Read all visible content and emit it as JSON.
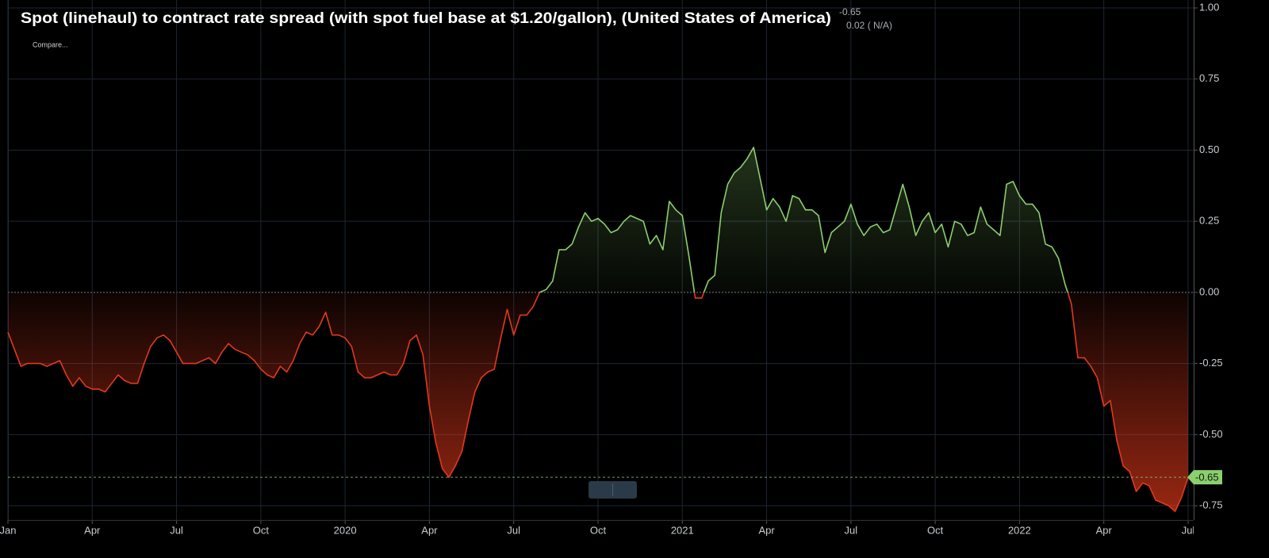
{
  "chart_data": {
    "type": "line",
    "title": "Spot (linehaul) to contract rate spread (with spot fuel base at $1.20/gallon), (United States of America)",
    "change_label": "0.02 ( N/A)",
    "compare_label": "Compare...",
    "positive_color": "#8ccf6e",
    "negative_color": "#e2391c",
    "categories": [
      "Jan",
      null,
      null,
      null,
      null,
      null,
      null,
      null,
      null,
      null,
      null,
      null,
      null,
      "Apr",
      null,
      null,
      null,
      null,
      null,
      null,
      null,
      null,
      null,
      null,
      null,
      null,
      "Jul",
      null,
      null,
      null,
      null,
      null,
      null,
      null,
      null,
      null,
      null,
      null,
      null,
      "Oct",
      null,
      null,
      null,
      null,
      null,
      null,
      null,
      null,
      null,
      null,
      null,
      null,
      "2020",
      null,
      null,
      null,
      null,
      null,
      null,
      null,
      null,
      null,
      null,
      null,
      null,
      "Apr",
      null,
      null,
      null,
      null,
      null,
      null,
      null,
      null,
      null,
      null,
      null,
      null,
      "Jul",
      null,
      null,
      null,
      null,
      null,
      null,
      null,
      null,
      null,
      null,
      null,
      null,
      "Oct",
      null,
      null,
      null,
      null,
      null,
      null,
      null,
      null,
      null,
      null,
      null,
      null,
      "2021",
      null,
      null,
      null,
      null,
      null,
      null,
      null,
      null,
      null,
      null,
      null,
      null,
      "Apr",
      null,
      null,
      null,
      null,
      null,
      null,
      null,
      null,
      null,
      null,
      null,
      null,
      "Jul",
      null,
      null,
      null,
      null,
      null,
      null,
      null,
      null,
      null,
      null,
      null,
      null,
      "Oct",
      null,
      null,
      null,
      null,
      null,
      null,
      null,
      null,
      null,
      null,
      null,
      null,
      "2022",
      null,
      null,
      null,
      null,
      null,
      null,
      null,
      null,
      null,
      null,
      null,
      null,
      "Apr",
      null,
      null,
      null,
      null,
      null,
      null,
      null,
      null,
      null,
      null,
      null,
      null,
      "Jul"
    ],
    "values": [
      -0.14,
      -0.2,
      -0.26,
      -0.25,
      -0.25,
      -0.25,
      -0.26,
      -0.25,
      -0.24,
      -0.29,
      -0.33,
      -0.3,
      -0.33,
      -0.34,
      -0.34,
      -0.35,
      -0.32,
      -0.29,
      -0.31,
      -0.32,
      -0.32,
      -0.25,
      -0.19,
      -0.16,
      -0.15,
      -0.17,
      -0.21,
      -0.25,
      -0.25,
      -0.25,
      -0.24,
      -0.23,
      -0.25,
      -0.21,
      -0.18,
      -0.2,
      -0.21,
      -0.22,
      -0.24,
      -0.27,
      -0.29,
      -0.3,
      -0.26,
      -0.28,
      -0.24,
      -0.18,
      -0.14,
      -0.15,
      -0.12,
      -0.07,
      -0.15,
      -0.15,
      -0.16,
      -0.19,
      -0.28,
      -0.3,
      -0.3,
      -0.29,
      -0.28,
      -0.29,
      -0.29,
      -0.25,
      -0.17,
      -0.15,
      -0.22,
      -0.4,
      -0.53,
      -0.62,
      -0.65,
      -0.61,
      -0.56,
      -0.45,
      -0.35,
      -0.3,
      -0.28,
      -0.27,
      -0.16,
      -0.06,
      -0.15,
      -0.08,
      -0.08,
      -0.05,
      0.0,
      0.01,
      0.04,
      0.15,
      0.15,
      0.17,
      0.23,
      0.28,
      0.25,
      0.26,
      0.24,
      0.21,
      0.22,
      0.25,
      0.27,
      0.26,
      0.25,
      0.17,
      0.2,
      0.15,
      0.32,
      0.29,
      0.27,
      0.13,
      -0.02,
      -0.02,
      0.04,
      0.06,
      0.28,
      0.38,
      0.42,
      0.44,
      0.47,
      0.51,
      0.4,
      0.29,
      0.33,
      0.3,
      0.25,
      0.34,
      0.33,
      0.29,
      0.29,
      0.27,
      0.14,
      0.21,
      0.23,
      0.25,
      0.31,
      0.24,
      0.2,
      0.23,
      0.24,
      0.21,
      0.22,
      0.3,
      0.38,
      0.3,
      0.2,
      0.25,
      0.28,
      0.21,
      0.24,
      0.16,
      0.25,
      0.24,
      0.2,
      0.21,
      0.3,
      0.24,
      0.22,
      0.2,
      0.38,
      0.39,
      0.34,
      0.31,
      0.31,
      0.28,
      0.17,
      0.16,
      0.12,
      0.03,
      -0.04,
      -0.23,
      -0.23,
      -0.26,
      -0.3,
      -0.4,
      -0.38,
      -0.52,
      -0.61,
      -0.63,
      -0.7,
      -0.67,
      -0.68,
      -0.73,
      -0.74,
      -0.75,
      -0.77,
      -0.72,
      -0.65
    ],
    "ylim": [
      -0.8,
      1.0
    ],
    "yticks": [
      {
        "value": 1,
        "label": "1.00"
      },
      0.75,
      {
        "value": 0.5,
        "label": "0.50"
      },
      0.25,
      {
        "value": 0,
        "label": "0.00"
      },
      -0.25,
      {
        "value": -0.5,
        "label": "-0.50"
      },
      -0.75
    ],
    "grid": true
  }
}
